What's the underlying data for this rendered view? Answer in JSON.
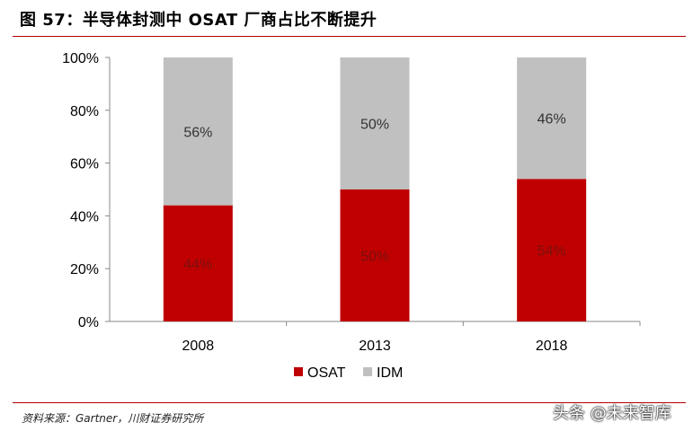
{
  "header": {
    "title": "图 57：半导体封测中 OSAT 厂商占比不断提升"
  },
  "footer": {
    "source": "资料来源：Gartner，川财证券研究所",
    "watermark": "头条 @未来智库"
  },
  "chart_data": {
    "type": "bar",
    "stacked": true,
    "categories": [
      "2008",
      "2013",
      "2018"
    ],
    "series": [
      {
        "name": "OSAT",
        "values": [
          44,
          50,
          54
        ],
        "labels": [
          "44%",
          "50%",
          "54%"
        ],
        "color": "#c00000"
      },
      {
        "name": "IDM",
        "values": [
          56,
          50,
          46
        ],
        "labels": [
          "56%",
          "50%",
          "46%"
        ],
        "color": "#c0c0c0"
      }
    ],
    "yticks": [
      "0%",
      "20%",
      "40%",
      "60%",
      "80%",
      "100%"
    ],
    "ylim": [
      0,
      100
    ],
    "grid": false,
    "legend": "bottom-center"
  }
}
